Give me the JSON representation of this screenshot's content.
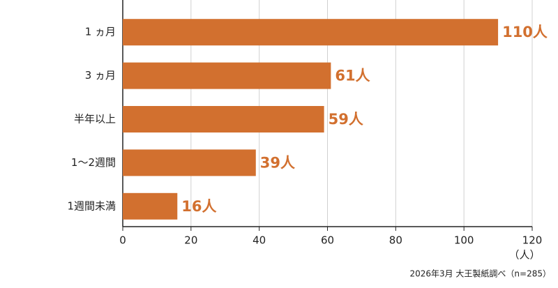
{
  "chart_data": {
    "type": "bar",
    "orientation": "horizontal",
    "categories": [
      "1 ヵ月",
      "3 ヵ月",
      "半年以上",
      "1〜2週間",
      "1週間未満"
    ],
    "values": [
      110,
      61,
      59,
      39,
      16
    ],
    "value_labels": [
      "110人",
      "61人",
      "59人",
      "39人",
      "16人"
    ],
    "color": "#d2702f",
    "xlim": [
      0,
      120
    ],
    "xticks": [
      0,
      20,
      40,
      60,
      80,
      100,
      120
    ],
    "xlabel": "（人）",
    "source": "2026年3月 大王製紙調べ（n=285）",
    "grid": true
  }
}
